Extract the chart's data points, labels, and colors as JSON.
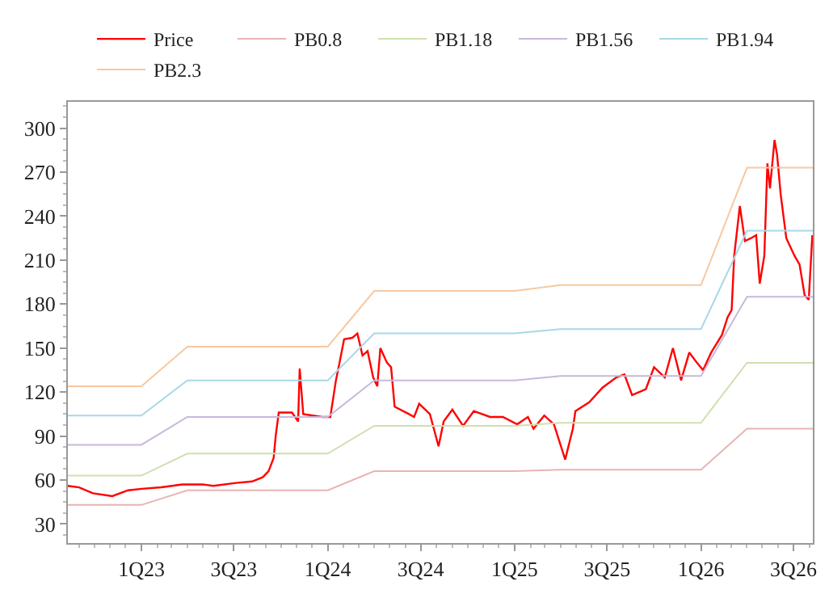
{
  "chart_data": {
    "type": "line",
    "legend": "top",
    "grid": false,
    "marker": "none",
    "line_style": "solid",
    "xlim": [
      "2022-08-10",
      "2026-08-08"
    ],
    "xticks": [
      {
        "value": "2023-01-01",
        "label": "1Q23"
      },
      {
        "value": "2023-07-01",
        "label": "3Q23"
      },
      {
        "value": "2024-01-01",
        "label": "1Q24"
      },
      {
        "value": "2024-07-01",
        "label": "3Q24"
      },
      {
        "value": "2025-01-01",
        "label": "1Q25"
      },
      {
        "value": "2025-07-01",
        "label": "3Q25"
      },
      {
        "value": "2026-01-01",
        "label": "1Q26"
      },
      {
        "value": "2026-07-01",
        "label": "3Q26"
      }
    ],
    "ylim": [
      17,
      318
    ],
    "yticks": [
      30,
      60,
      90,
      120,
      150,
      180,
      210,
      240,
      270,
      300
    ],
    "series": [
      {
        "name": "Price",
        "color": "#ff0000",
        "x": [
          "2022-08-10",
          "2022-09-01",
          "2022-09-28",
          "2022-11-05",
          "2022-12-06",
          "2023-01-02",
          "2023-02-09",
          "2023-03-22",
          "2023-05-01",
          "2023-05-22",
          "2023-07-05",
          "2023-08-06",
          "2023-08-27",
          "2023-09-07",
          "2023-09-17",
          "2023-09-21",
          "2023-09-27",
          "2023-10-23",
          "2023-11-04",
          "2023-11-07",
          "2023-11-14",
          "2023-12-21",
          "2024-01-06",
          "2024-01-17",
          "2024-01-24",
          "2024-02-02",
          "2024-02-18",
          "2024-02-28",
          "2024-03-09",
          "2024-03-19",
          "2024-03-30",
          "2024-04-07",
          "2024-04-13",
          "2024-04-26",
          "2024-05-04",
          "2024-05-11",
          "2024-06-08",
          "2024-06-18",
          "2024-06-28",
          "2024-07-19",
          "2024-08-05",
          "2024-08-15",
          "2024-09-01",
          "2024-09-22",
          "2024-10-13",
          "2024-11-14",
          "2024-12-09",
          "2025-01-06",
          "2025-01-27",
          "2025-02-07",
          "2025-02-28",
          "2025-03-19",
          "2025-04-10",
          "2025-04-25",
          "2025-04-30",
          "2025-05-27",
          "2025-06-22",
          "2025-07-19",
          "2025-08-04",
          "2025-08-19",
          "2025-09-15",
          "2025-10-01",
          "2025-10-22",
          "2025-11-07",
          "2025-11-23",
          "2025-12-09",
          "2025-12-24",
          "2026-01-05",
          "2026-01-21",
          "2026-02-11",
          "2026-02-22",
          "2026-03-02",
          "2026-03-07",
          "2026-03-18",
          "2026-03-28",
          "2026-04-09",
          "2026-04-19",
          "2026-04-26",
          "2026-05-05",
          "2026-05-11",
          "2026-05-16",
          "2026-05-25",
          "2026-05-30",
          "2026-06-06",
          "2026-06-17",
          "2026-07-03",
          "2026-07-13",
          "2026-07-23",
          "2026-07-31",
          "2026-08-07"
        ],
        "values": [
          56,
          55,
          51,
          49,
          53,
          54,
          55,
          57,
          57,
          56,
          58,
          59,
          62,
          66,
          75,
          90,
          106,
          106,
          100,
          136,
          105,
          103,
          103,
          128,
          140,
          156,
          157,
          160,
          145,
          148,
          130,
          124,
          150,
          140,
          137,
          110,
          105,
          103,
          112,
          105,
          83,
          100,
          108,
          97,
          107,
          103,
          103,
          98,
          103,
          95,
          104,
          98,
          74,
          95,
          107,
          113,
          123,
          130,
          132,
          118,
          122,
          137,
          130,
          150,
          128,
          147,
          140,
          135,
          147,
          159,
          171,
          176,
          213,
          247,
          223,
          225,
          227,
          194,
          213,
          276,
          259,
          292,
          282,
          255,
          225,
          213,
          207,
          186,
          183,
          227
        ]
      },
      {
        "name": "PB0.8",
        "color": "#e8b4b4",
        "x": [
          "2022-08-10",
          "2023-01-01",
          "2023-04-01",
          "2024-01-01",
          "2024-04-01",
          "2025-01-01",
          "2025-04-01",
          "2026-01-01",
          "2026-04-01",
          "2026-08-08"
        ],
        "values": [
          43,
          43,
          53,
          53,
          66,
          66,
          67,
          67,
          95,
          95
        ]
      },
      {
        "name": "PB1.18",
        "color": "#cfe0b0",
        "x": [
          "2022-08-10",
          "2023-01-01",
          "2023-04-01",
          "2024-01-01",
          "2024-04-01",
          "2025-01-01",
          "2025-04-01",
          "2026-01-01",
          "2026-04-01",
          "2026-08-08"
        ],
        "values": [
          63,
          63,
          78,
          78,
          97,
          97,
          99,
          99,
          140,
          140
        ]
      },
      {
        "name": "PB1.56",
        "color": "#c8b8dc",
        "x": [
          "2022-08-10",
          "2023-01-01",
          "2023-04-01",
          "2024-01-01",
          "2024-04-01",
          "2025-01-01",
          "2025-04-01",
          "2026-01-01",
          "2026-04-01",
          "2026-08-08"
        ],
        "values": [
          84,
          84,
          103,
          103,
          128,
          128,
          131,
          131,
          185,
          185
        ]
      },
      {
        "name": "PB1.94",
        "color": "#a8d8e8",
        "x": [
          "2022-08-10",
          "2023-01-01",
          "2023-04-01",
          "2024-01-01",
          "2024-04-01",
          "2025-01-01",
          "2025-04-01",
          "2026-01-01",
          "2026-04-01",
          "2026-08-08"
        ],
        "values": [
          104,
          104,
          128,
          128,
          160,
          160,
          163,
          163,
          230,
          230
        ]
      },
      {
        "name": "PB2.3",
        "color": "#f8c8a0",
        "x": [
          "2022-08-10",
          "2023-01-01",
          "2023-04-01",
          "2024-01-01",
          "2024-04-01",
          "2025-01-01",
          "2025-04-01",
          "2026-01-01",
          "2026-04-01",
          "2026-08-08"
        ],
        "values": [
          124,
          124,
          151,
          151,
          189,
          189,
          193,
          193,
          273,
          273
        ]
      }
    ]
  }
}
